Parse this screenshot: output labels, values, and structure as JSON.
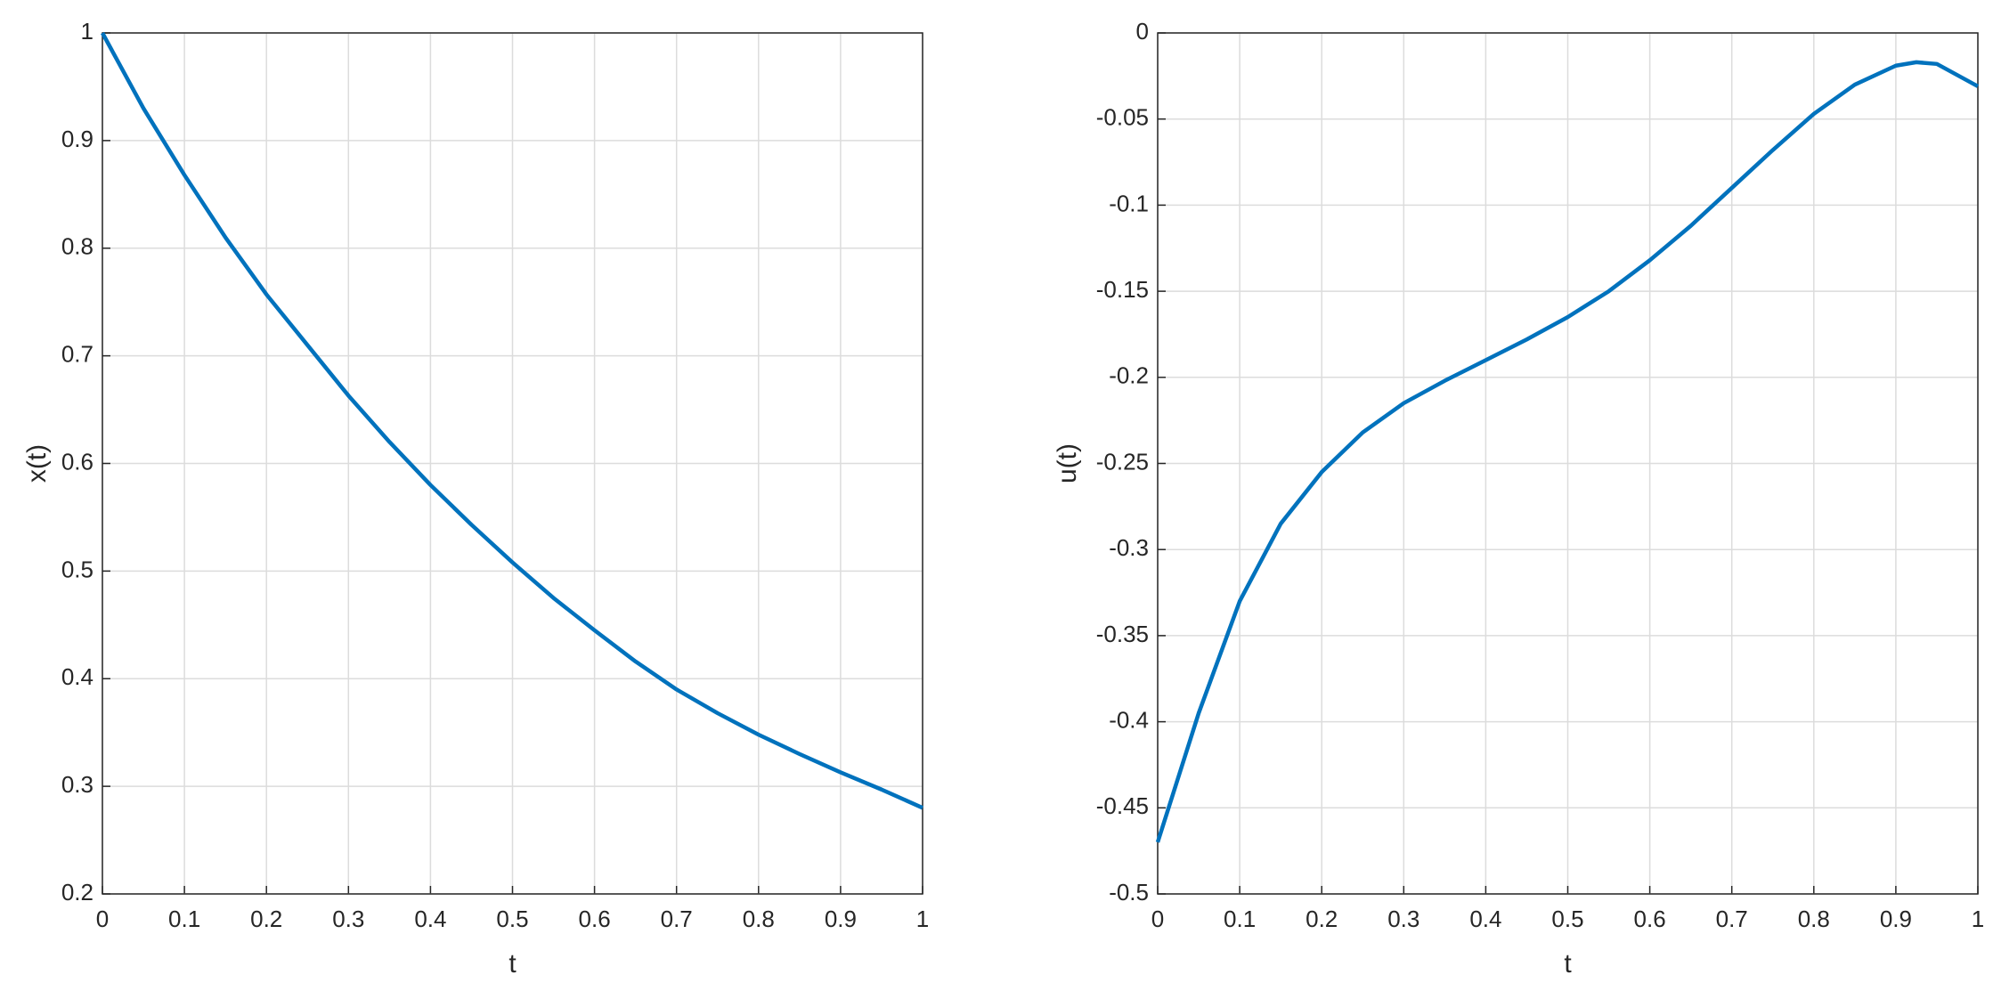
{
  "chart_data": [
    {
      "type": "line",
      "xlabel": "t",
      "ylabel": "x(t)",
      "x": [
        0,
        0.05,
        0.1,
        0.15,
        0.2,
        0.25,
        0.3,
        0.35,
        0.4,
        0.45,
        0.5,
        0.55,
        0.6,
        0.65,
        0.7,
        0.75,
        0.8,
        0.85,
        0.9,
        0.95,
        1
      ],
      "values": [
        1,
        0.93,
        0.868,
        0.81,
        0.757,
        0.71,
        0.663,
        0.62,
        0.58,
        0.543,
        0.508,
        0.475,
        0.445,
        0.416,
        0.39,
        0.368,
        0.348,
        0.33,
        0.313,
        0.297,
        0.28
      ],
      "color": "#0072bd",
      "xlim": [
        0,
        1
      ],
      "xticks": [
        0,
        0.1,
        0.2,
        0.3,
        0.4,
        0.5,
        0.6,
        0.7,
        0.8,
        0.9,
        1
      ],
      "ylim": [
        0.2,
        1
      ],
      "yticks": [
        0.2,
        0.3,
        0.4,
        0.5,
        0.6,
        0.7,
        0.8,
        0.9,
        1
      ],
      "grid": true
    },
    {
      "type": "line",
      "xlabel": "t",
      "ylabel": "u(t)",
      "x": [
        0,
        0.05,
        0.1,
        0.15,
        0.2,
        0.25,
        0.3,
        0.35,
        0.4,
        0.45,
        0.5,
        0.55,
        0.6,
        0.65,
        0.7,
        0.75,
        0.8,
        0.85,
        0.9,
        0.925,
        0.95,
        1
      ],
      "values": [
        -0.47,
        -0.395,
        -0.33,
        -0.285,
        -0.255,
        -0.232,
        -0.215,
        -0.202,
        -0.19,
        -0.178,
        -0.165,
        -0.15,
        -0.132,
        -0.112,
        -0.09,
        -0.068,
        -0.047,
        -0.03,
        -0.019,
        -0.017,
        -0.018,
        -0.031
      ],
      "color": "#0072bd",
      "xlim": [
        0,
        1
      ],
      "xticks": [
        0,
        0.1,
        0.2,
        0.3,
        0.4,
        0.5,
        0.6,
        0.7,
        0.8,
        0.9,
        1
      ],
      "ylim": [
        -0.5,
        0
      ],
      "yticks": [
        -0.5,
        -0.45,
        -0.4,
        -0.35,
        -0.3,
        -0.25,
        -0.2,
        -0.15,
        -0.1,
        -0.05,
        0
      ],
      "grid": true
    }
  ]
}
